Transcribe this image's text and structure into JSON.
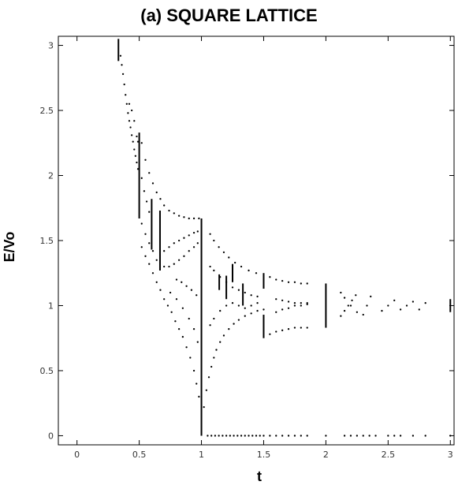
{
  "chart_data": {
    "type": "scatter",
    "title": "(a) SQUARE LATTICE",
    "xlabel": "t",
    "ylabel": "E/Vo",
    "xlim": [
      -0.15,
      3.03
    ],
    "ylim": [
      -0.07,
      3.07
    ],
    "grid": false,
    "xticks": [
      0,
      0.5,
      1,
      1.5,
      2,
      2.5,
      3
    ],
    "xtick_labels": [
      "0",
      "0.5",
      "1",
      "1.5",
      "2",
      "2.5",
      "3"
    ],
    "yticks": [
      0,
      0.5,
      1,
      1.5,
      2,
      2.5,
      3
    ],
    "ytick_labels": [
      "0",
      "0.5",
      "1",
      "1.5",
      "2",
      "2.5",
      "3"
    ],
    "series": [
      {
        "name": "",
        "style": "vertical_segments",
        "segments": [
          {
            "x": 0.333,
            "y1": 2.88,
            "y2": 3.05
          },
          {
            "x": 0.5,
            "y1": 1.67,
            "y2": 2.33
          },
          {
            "x": 0.6,
            "y1": 1.43,
            "y2": 1.82
          },
          {
            "x": 0.667,
            "y1": 1.27,
            "y2": 1.73
          },
          {
            "x": 1.0,
            "y1": 0.0,
            "y2": 1.67
          },
          {
            "x": 1.143,
            "y1": 1.12,
            "y2": 1.24
          },
          {
            "x": 1.2,
            "y1": 1.05,
            "y2": 1.23
          },
          {
            "x": 1.25,
            "y1": 1.18,
            "y2": 1.32
          },
          {
            "x": 1.333,
            "y1": 1.0,
            "y2": 1.17
          },
          {
            "x": 1.5,
            "y1": 1.13,
            "y2": 1.25
          },
          {
            "x": 1.5,
            "y1": 0.75,
            "y2": 0.93
          },
          {
            "x": 2.0,
            "y1": 0.83,
            "y2": 1.17
          },
          {
            "x": 3.0,
            "y1": 0.95,
            "y2": 1.05
          }
        ]
      },
      {
        "name": "",
        "style": "dots",
        "points": [
          [
            0.35,
            2.92
          ],
          [
            0.36,
            2.85
          ],
          [
            0.37,
            2.78
          ],
          [
            0.38,
            2.7
          ],
          [
            0.39,
            2.62
          ],
          [
            0.4,
            2.55
          ],
          [
            0.41,
            2.48
          ],
          [
            0.42,
            2.42
          ],
          [
            0.43,
            2.37
          ],
          [
            0.44,
            2.31
          ],
          [
            0.45,
            2.26
          ],
          [
            0.46,
            2.2
          ],
          [
            0.47,
            2.15
          ],
          [
            0.48,
            2.1
          ],
          [
            0.49,
            2.05
          ],
          [
            0.42,
            2.55
          ],
          [
            0.44,
            2.5
          ],
          [
            0.46,
            2.42
          ],
          [
            0.48,
            2.3
          ],
          [
            0.49,
            2.26
          ],
          [
            0.52,
            2.25
          ],
          [
            0.55,
            2.12
          ],
          [
            0.58,
            2.02
          ],
          [
            0.61,
            1.94
          ],
          [
            0.64,
            1.87
          ],
          [
            0.67,
            1.82
          ],
          [
            0.7,
            1.77
          ],
          [
            0.74,
            1.73
          ],
          [
            0.78,
            1.71
          ],
          [
            0.82,
            1.69
          ],
          [
            0.86,
            1.68
          ],
          [
            0.9,
            1.67
          ],
          [
            0.94,
            1.67
          ],
          [
            0.98,
            1.67
          ],
          [
            0.52,
            1.98
          ],
          [
            0.54,
            1.88
          ],
          [
            0.56,
            1.8
          ],
          [
            0.58,
            1.72
          ],
          [
            0.52,
            1.63
          ],
          [
            0.55,
            1.55
          ],
          [
            0.58,
            1.48
          ],
          [
            0.61,
            1.42
          ],
          [
            0.64,
            1.35
          ],
          [
            0.52,
            1.45
          ],
          [
            0.55,
            1.38
          ],
          [
            0.58,
            1.32
          ],
          [
            0.61,
            1.25
          ],
          [
            0.64,
            1.18
          ],
          [
            0.67,
            1.12
          ],
          [
            0.7,
            1.05
          ],
          [
            0.73,
            1.0
          ],
          [
            0.76,
            0.95
          ],
          [
            0.79,
            0.88
          ],
          [
            0.82,
            0.82
          ],
          [
            0.85,
            0.76
          ],
          [
            0.88,
            0.68
          ],
          [
            0.91,
            0.6
          ],
          [
            0.94,
            0.5
          ],
          [
            0.96,
            0.4
          ],
          [
            0.98,
            0.3
          ],
          [
            0.7,
            1.42
          ],
          [
            0.74,
            1.45
          ],
          [
            0.78,
            1.48
          ],
          [
            0.82,
            1.5
          ],
          [
            0.86,
            1.52
          ],
          [
            0.9,
            1.54
          ],
          [
            0.94,
            1.56
          ],
          [
            0.97,
            1.57
          ],
          [
            0.7,
            1.3
          ],
          [
            0.74,
            1.3
          ],
          [
            0.78,
            1.32
          ],
          [
            0.82,
            1.35
          ],
          [
            0.86,
            1.38
          ],
          [
            0.9,
            1.42
          ],
          [
            0.94,
            1.45
          ],
          [
            0.97,
            1.48
          ],
          [
            0.75,
            1.1
          ],
          [
            0.8,
            1.05
          ],
          [
            0.85,
            0.98
          ],
          [
            0.9,
            0.9
          ],
          [
            0.94,
            0.82
          ],
          [
            0.97,
            0.72
          ],
          [
            0.8,
            1.2
          ],
          [
            0.84,
            1.18
          ],
          [
            0.88,
            1.15
          ],
          [
            0.92,
            1.12
          ],
          [
            0.96,
            1.08
          ],
          [
            1.02,
            0.22
          ],
          [
            1.04,
            0.35
          ],
          [
            1.06,
            0.45
          ],
          [
            1.08,
            0.53
          ],
          [
            1.1,
            0.6
          ],
          [
            1.12,
            0.66
          ],
          [
            1.15,
            0.72
          ],
          [
            1.18,
            0.77
          ],
          [
            1.22,
            0.82
          ],
          [
            1.26,
            0.86
          ],
          [
            1.3,
            0.89
          ],
          [
            1.35,
            0.92
          ],
          [
            1.4,
            0.94
          ],
          [
            1.45,
            0.96
          ],
          [
            1.5,
            0.97
          ],
          [
            1.55,
            0.78
          ],
          [
            1.6,
            0.8
          ],
          [
            1.65,
            0.81
          ],
          [
            1.7,
            0.82
          ],
          [
            1.75,
            0.83
          ],
          [
            1.8,
            0.83
          ],
          [
            1.85,
            0.83
          ],
          [
            1.07,
            1.55
          ],
          [
            1.1,
            1.5
          ],
          [
            1.14,
            1.45
          ],
          [
            1.18,
            1.41
          ],
          [
            1.22,
            1.37
          ],
          [
            1.27,
            1.33
          ],
          [
            1.32,
            1.3
          ],
          [
            1.38,
            1.27
          ],
          [
            1.44,
            1.25
          ],
          [
            1.55,
            1.22
          ],
          [
            1.6,
            1.2
          ],
          [
            1.65,
            1.19
          ],
          [
            1.7,
            1.18
          ],
          [
            1.75,
            1.18
          ],
          [
            1.8,
            1.17
          ],
          [
            1.85,
            1.17
          ],
          [
            1.07,
            0.85
          ],
          [
            1.1,
            0.9
          ],
          [
            1.15,
            0.96
          ],
          [
            1.2,
            1.0
          ],
          [
            1.25,
            1.02
          ],
          [
            1.3,
            1.0
          ],
          [
            1.35,
            0.98
          ],
          [
            1.4,
            1.0
          ],
          [
            1.45,
            1.02
          ],
          [
            1.07,
            1.3
          ],
          [
            1.1,
            1.27
          ],
          [
            1.15,
            1.22
          ],
          [
            1.2,
            1.18
          ],
          [
            1.25,
            1.14
          ],
          [
            1.3,
            1.12
          ],
          [
            1.35,
            1.1
          ],
          [
            1.4,
            1.08
          ],
          [
            1.45,
            1.07
          ],
          [
            1.6,
            0.95
          ],
          [
            1.65,
            0.97
          ],
          [
            1.7,
            0.98
          ],
          [
            1.75,
            1.0
          ],
          [
            1.8,
            1.0
          ],
          [
            1.85,
            1.02
          ],
          [
            1.6,
            1.05
          ],
          [
            1.65,
            1.04
          ],
          [
            1.7,
            1.03
          ],
          [
            1.75,
            1.02
          ],
          [
            1.8,
            1.02
          ],
          [
            1.85,
            1.01
          ],
          [
            2.12,
            0.92
          ],
          [
            2.15,
            0.96
          ],
          [
            2.18,
            1.0
          ],
          [
            2.21,
            1.04
          ],
          [
            2.24,
            1.08
          ],
          [
            2.12,
            1.1
          ],
          [
            2.15,
            1.06
          ],
          [
            2.2,
            1.0
          ],
          [
            2.25,
            0.95
          ],
          [
            2.3,
            0.93
          ],
          [
            2.33,
            1.0
          ],
          [
            2.36,
            1.07
          ],
          [
            2.45,
            0.96
          ],
          [
            2.5,
            1.0
          ],
          [
            2.55,
            1.04
          ],
          [
            2.6,
            0.97
          ],
          [
            2.65,
            1.0
          ],
          [
            2.7,
            1.03
          ],
          [
            2.75,
            0.97
          ],
          [
            2.8,
            1.02
          ],
          [
            1.05,
            0.0
          ],
          [
            1.08,
            0.0
          ],
          [
            1.11,
            0.0
          ],
          [
            1.14,
            0.0
          ],
          [
            1.17,
            0.0
          ],
          [
            1.2,
            0.0
          ],
          [
            1.23,
            0.0
          ],
          [
            1.26,
            0.0
          ],
          [
            1.29,
            0.0
          ],
          [
            1.32,
            0.0
          ],
          [
            1.35,
            0.0
          ],
          [
            1.38,
            0.0
          ],
          [
            1.41,
            0.0
          ],
          [
            1.44,
            0.0
          ],
          [
            1.47,
            0.0
          ],
          [
            1.5,
            0.0
          ],
          [
            1.55,
            0.0
          ],
          [
            1.6,
            0.0
          ],
          [
            1.65,
            0.0
          ],
          [
            1.7,
            0.0
          ],
          [
            1.75,
            0.0
          ],
          [
            1.8,
            0.0
          ],
          [
            1.85,
            0.0
          ],
          [
            2.0,
            0.0
          ],
          [
            2.15,
            0.0
          ],
          [
            2.2,
            0.0
          ],
          [
            2.25,
            0.0
          ],
          [
            2.3,
            0.0
          ],
          [
            2.35,
            0.0
          ],
          [
            2.4,
            0.0
          ],
          [
            2.5,
            0.0
          ],
          [
            2.55,
            0.0
          ],
          [
            2.6,
            0.0
          ],
          [
            2.7,
            0.0
          ],
          [
            2.8,
            0.0
          ],
          [
            3.0,
            0.0
          ]
        ]
      }
    ]
  }
}
